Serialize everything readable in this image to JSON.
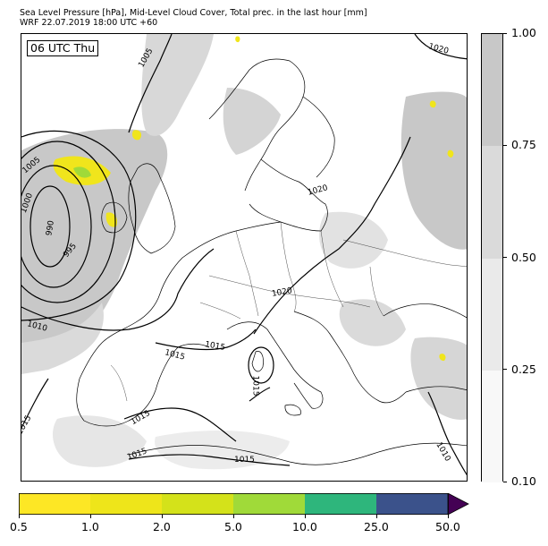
{
  "title_line1": "Sea Level Pressure [hPa], Mid-Level Cloud Cover, Total prec. in the last hour [mm]",
  "title_line2": "WRF 22.07.2019 18:00 UTC +60",
  "valid_time_label": "06 UTC Thu",
  "isobar_labels": [
    "1005",
    "1020",
    "1005",
    "1020",
    "1000",
    "990",
    "995",
    "1010",
    "1020",
    "1015",
    "1015",
    "1015",
    "1015",
    "1015",
    "1015",
    "1010"
  ],
  "cloud_cover_colorbar": {
    "ticks": [
      "0.10",
      "0.25",
      "0.50",
      "0.75",
      "1.00"
    ],
    "colors": [
      "#f8f8f8",
      "#eaeaea",
      "#dadada",
      "#c8c8c8"
    ]
  },
  "precip_colorbar": {
    "ticks": [
      "0.5",
      "1.0",
      "2.0",
      "5.0",
      "10.0",
      "25.0",
      "50.0"
    ],
    "colors": [
      "#fde725",
      "#eee51a",
      "#d4e21a",
      "#a0da39",
      "#2eb67c",
      "#3b528b",
      "#440154"
    ]
  },
  "colors": {
    "coast": "#000000",
    "isobar": "#000000",
    "border": "#000000"
  }
}
